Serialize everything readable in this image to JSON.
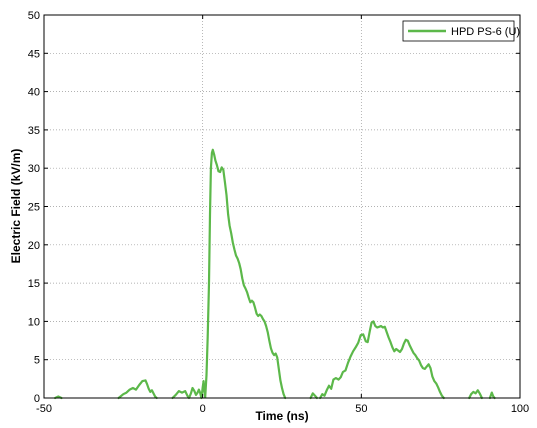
{
  "chart_data": {
    "type": "line",
    "xlabel": "Time (ns)",
    "ylabel": "Electric Field (kV/m)",
    "xlim": [
      -50,
      100
    ],
    "ylim": [
      0,
      50
    ],
    "xticks": [
      "-50",
      "0",
      "50",
      "100"
    ],
    "yticks": [
      "0",
      "5",
      "10",
      "15",
      "20",
      "25",
      "30",
      "35",
      "40",
      "45",
      "50"
    ],
    "grid": true,
    "legend_position": "top-right",
    "series": [
      {
        "name": "HPD PS-6 (U)",
        "color": "#5cb84a",
        "segments": [
          [
            [
              -46.5,
              0.0
            ],
            [
              -45.5,
              0.2
            ],
            [
              -44.5,
              0.0
            ]
          ],
          [
            [
              -26.5,
              0.0
            ],
            [
              -25,
              0.5
            ],
            [
              -24,
              0.7
            ],
            [
              -23,
              1.1
            ],
            [
              -22,
              1.3
            ],
            [
              -21,
              1.1
            ],
            [
              -20,
              1.7
            ],
            [
              -19,
              2.2
            ],
            [
              -18,
              2.3
            ],
            [
              -17.5,
              1.8
            ],
            [
              -17,
              1.2
            ],
            [
              -16.5,
              0.8
            ],
            [
              -16,
              1.0
            ],
            [
              -15.5,
              0.6
            ],
            [
              -15,
              0.2
            ],
            [
              -14.5,
              0.0
            ]
          ],
          [
            [
              -9.5,
              0.0
            ],
            [
              -8.5,
              0.4
            ],
            [
              -7.5,
              0.9
            ],
            [
              -6.5,
              0.7
            ],
            [
              -5.5,
              0.9
            ],
            [
              -4.8,
              0.3
            ],
            [
              -4.3,
              0.0
            ],
            [
              -3.7,
              0.6
            ],
            [
              -3.2,
              1.3
            ],
            [
              -2.6,
              0.9
            ],
            [
              -2.1,
              0.4
            ],
            [
              -1.6,
              0.7
            ],
            [
              -1.2,
              1.1
            ],
            [
              -0.8,
              0.7
            ],
            [
              -0.4,
              0.0
            ],
            [
              -0.2,
              0.6
            ],
            [
              0.0,
              1.4
            ],
            [
              0.3,
              2.2
            ],
            [
              0.5,
              1.0
            ],
            [
              0.8,
              0.1
            ],
            [
              1.2,
              3.0
            ],
            [
              1.6,
              8.0
            ],
            [
              2.0,
              15.0
            ],
            [
              2.3,
              24.0
            ],
            [
              2.6,
              30.0
            ],
            [
              2.9,
              32.0
            ],
            [
              3.2,
              32.4
            ],
            [
              3.6,
              31.8
            ],
            [
              4.0,
              31.0
            ],
            [
              4.5,
              30.4
            ],
            [
              5.0,
              29.6
            ],
            [
              5.5,
              29.5
            ],
            [
              6.0,
              30.1
            ],
            [
              6.5,
              29.8
            ],
            [
              7.0,
              28.2
            ],
            [
              7.5,
              26.5
            ],
            [
              8.0,
              24.0
            ],
            [
              8.5,
              22.5
            ],
            [
              9.0,
              21.5
            ],
            [
              9.5,
              20.3
            ],
            [
              10.0,
              19.4
            ],
            [
              10.5,
              18.6
            ],
            [
              11.0,
              18.2
            ],
            [
              11.5,
              17.6
            ],
            [
              12.0,
              16.8
            ],
            [
              12.5,
              15.6
            ],
            [
              13.0,
              14.7
            ],
            [
              13.5,
              14.3
            ],
            [
              14.0,
              13.8
            ],
            [
              14.5,
              13.1
            ],
            [
              15.0,
              12.5
            ],
            [
              15.5,
              12.7
            ],
            [
              16.0,
              12.5
            ],
            [
              16.5,
              11.8
            ],
            [
              17.0,
              11.0
            ],
            [
              17.5,
              10.7
            ],
            [
              18.0,
              10.9
            ],
            [
              18.5,
              10.7
            ],
            [
              19.0,
              10.3
            ],
            [
              19.5,
              10.0
            ],
            [
              20.0,
              9.4
            ],
            [
              20.5,
              8.6
            ],
            [
              21.0,
              7.5
            ],
            [
              21.5,
              6.5
            ],
            [
              22.0,
              5.9
            ],
            [
              22.5,
              5.6
            ],
            [
              23.0,
              5.8
            ],
            [
              23.5,
              5.3
            ],
            [
              24.0,
              3.8
            ],
            [
              24.5,
              2.3
            ],
            [
              25.0,
              1.3
            ],
            [
              25.5,
              0.5
            ],
            [
              26.0,
              0.0
            ]
          ],
          [
            [
              34.0,
              0.0
            ],
            [
              34.7,
              0.6
            ],
            [
              35.4,
              0.3
            ],
            [
              36.0,
              0.0
            ]
          ],
          [
            [
              37.0,
              0.0
            ],
            [
              37.7,
              0.5
            ],
            [
              38.4,
              0.3
            ],
            [
              39.1,
              1.0
            ],
            [
              39.8,
              1.6
            ],
            [
              40.5,
              1.2
            ],
            [
              41.2,
              2.4
            ],
            [
              42.0,
              2.6
            ],
            [
              42.8,
              2.4
            ],
            [
              43.5,
              2.7
            ],
            [
              44.2,
              3.4
            ],
            [
              45.0,
              3.6
            ],
            [
              45.8,
              4.6
            ],
            [
              46.6,
              5.4
            ],
            [
              47.4,
              6.1
            ],
            [
              48.2,
              6.6
            ],
            [
              49.0,
              7.2
            ],
            [
              49.8,
              8.2
            ],
            [
              50.6,
              8.3
            ],
            [
              51.4,
              7.4
            ],
            [
              52.0,
              7.3
            ],
            [
              52.6,
              8.6
            ],
            [
              53.2,
              9.8
            ],
            [
              53.8,
              10.0
            ],
            [
              54.4,
              9.4
            ],
            [
              55.0,
              9.2
            ],
            [
              55.6,
              9.3
            ],
            [
              56.2,
              9.4
            ],
            [
              56.8,
              9.2
            ],
            [
              57.4,
              9.3
            ],
            [
              58.0,
              8.6
            ],
            [
              58.6,
              7.9
            ],
            [
              59.2,
              7.3
            ],
            [
              59.8,
              6.6
            ],
            [
              60.4,
              6.1
            ],
            [
              61.0,
              6.4
            ],
            [
              61.6,
              6.2
            ],
            [
              62.2,
              6.0
            ],
            [
              62.8,
              6.4
            ],
            [
              63.4,
              7.1
            ],
            [
              64.0,
              7.6
            ],
            [
              64.6,
              7.5
            ],
            [
              65.2,
              6.9
            ],
            [
              65.8,
              6.4
            ],
            [
              66.4,
              5.9
            ],
            [
              67.0,
              5.6
            ],
            [
              67.6,
              5.2
            ],
            [
              68.2,
              4.9
            ],
            [
              68.8,
              4.3
            ],
            [
              69.4,
              3.9
            ],
            [
              70.0,
              3.8
            ],
            [
              70.6,
              4.1
            ],
            [
              71.2,
              4.4
            ],
            [
              71.8,
              3.9
            ],
            [
              72.4,
              2.8
            ],
            [
              73.0,
              2.2
            ],
            [
              73.6,
              1.9
            ],
            [
              74.2,
              1.4
            ],
            [
              74.8,
              0.8
            ],
            [
              75.4,
              0.3
            ],
            [
              76.0,
              0.0
            ]
          ],
          [
            [
              84.0,
              0.0
            ],
            [
              84.6,
              0.5
            ],
            [
              85.3,
              0.8
            ],
            [
              86.0,
              0.6
            ],
            [
              86.7,
              1.0
            ],
            [
              87.3,
              0.6
            ],
            [
              88.0,
              0.0
            ]
          ],
          [
            [
              90.5,
              0.0
            ],
            [
              91.1,
              0.7
            ],
            [
              91.6,
              0.2
            ],
            [
              92.0,
              0.0
            ]
          ]
        ]
      }
    ]
  }
}
